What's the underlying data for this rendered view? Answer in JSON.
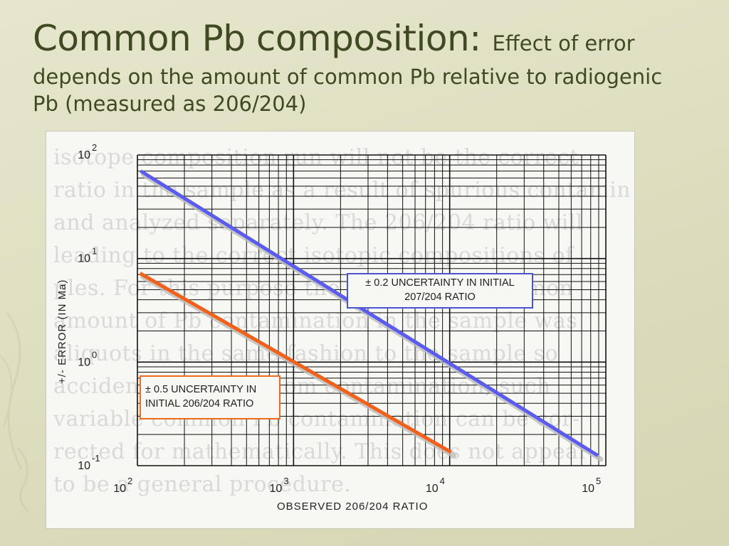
{
  "slide": {
    "title_main": "Common Pb composition:",
    "title_sub": "Effect of error",
    "title_line2": "depends on the amount of common Pb relative to radiogenic",
    "title_line3": "Pb (measured as 206/204)"
  },
  "colors": {
    "title": "#3f4a22",
    "series_blue": "#5a5cf0",
    "series_orange": "#f2601a",
    "grid": "#111111"
  },
  "chart_data": {
    "type": "line",
    "xscale": "log",
    "yscale": "log",
    "xlim": [
      100,
      100000
    ],
    "ylim": [
      0.1,
      100
    ],
    "grid": true,
    "xlabel": "OBSERVED 206/204 RATIO",
    "ylabel": "+/- ERROR (IN Ma)",
    "x_ticks": [
      {
        "base": "10",
        "exp": "2"
      },
      {
        "base": "10",
        "exp": "3"
      },
      {
        "base": "10",
        "exp": "4"
      },
      {
        "base": "10",
        "exp": "5"
      }
    ],
    "y_ticks": [
      {
        "base": "10",
        "exp": "2"
      },
      {
        "base": "10",
        "exp": "1"
      },
      {
        "base": "10",
        "exp": "0"
      },
      {
        "base": "10",
        "exp": "-1"
      }
    ],
    "series": [
      {
        "name": "± 0.2 UNCERTAINTY IN INITIAL 207/204 RATIO",
        "label_line1": "± 0.2 UNCERTAINTY IN INITIAL",
        "label_line2": "207/204 RATIO",
        "x": [
          105,
          89000
        ],
        "y": [
          70,
          0.125
        ]
      },
      {
        "name": "± 0.5 UNCERTAINTY IN INITIAL 206/204 RATIO",
        "label_line1": "± 0.5 UNCERTAINTY IN",
        "label_line2": "INITIAL 206/204 RATIO",
        "x": [
          104,
          10200
        ],
        "y": [
          7.2,
          0.135
        ]
      }
    ]
  }
}
